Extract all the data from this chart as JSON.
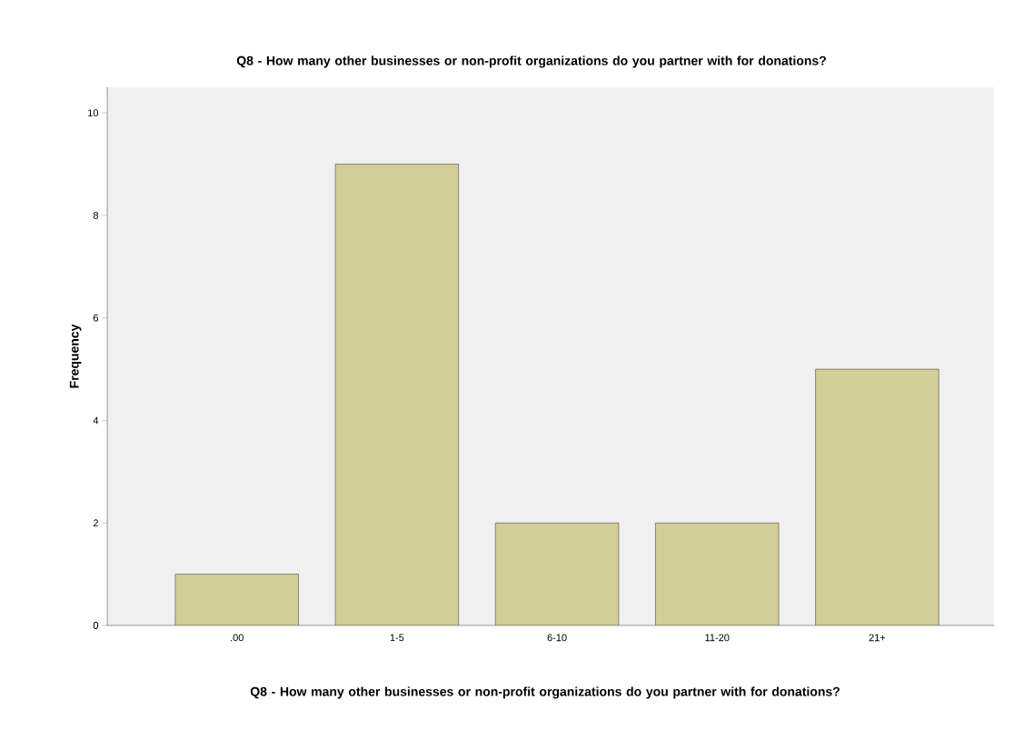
{
  "chart_data": {
    "type": "bar",
    "title": "Q8 - How many other businesses or non-profit organizations do you partner with for donations?",
    "xlabel": "Q8 - How many other businesses or non-profit organizations do you partner with for donations?",
    "ylabel": "Frequency",
    "categories": [
      ".00",
      "1-5",
      "6-10",
      "11-20",
      "21+"
    ],
    "values": [
      1,
      9,
      2,
      2,
      5
    ],
    "color": "#d3ce97",
    "ylim": [
      0,
      10.5
    ],
    "yticks": [
      0,
      2,
      4,
      6,
      8,
      10
    ]
  }
}
